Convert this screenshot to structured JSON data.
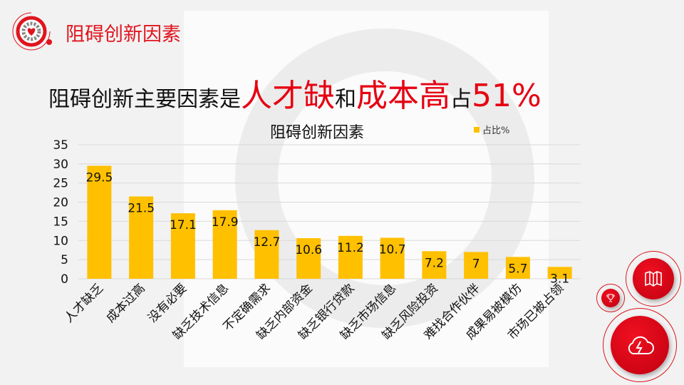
{
  "header": {
    "title": "阻碍创新因素"
  },
  "headline": {
    "part1": "阻碍创新主要因素是",
    "part2": "人才缺",
    "part3": "和",
    "part4": "成本高",
    "part5": "占",
    "part6": "51%"
  },
  "colors": {
    "accent": "#e60012",
    "bar": "#ffc000"
  },
  "chart_data": {
    "type": "bar",
    "title": "阻碍创新因素",
    "legend": [
      "占比%"
    ],
    "legend_position": "top-right",
    "categories": [
      "人才缺乏",
      "成本过高",
      "没有必要",
      "缺乏技术信息",
      "不定确需求",
      "缺乏内部资金",
      "缺乏银行贷款",
      "缺乏市场信息",
      "缺乏风险投资",
      "难找合作伙伴",
      "成果易被模仿",
      "市场已被占领"
    ],
    "series": [
      {
        "name": "占比%",
        "values": [
          29.5,
          21.5,
          17.1,
          17.9,
          12.7,
          10.6,
          11.2,
          10.7,
          7.2,
          7,
          5.7,
          3.1
        ]
      }
    ],
    "value_labels": [
      "29.5",
      "21.5",
      "17.1",
      "17.9",
      "12.7",
      "10.6",
      "11.2",
      "10.7",
      "7.2",
      "7",
      "5.7",
      "3.1"
    ],
    "ylim": [
      0,
      35
    ],
    "yticks": [
      "0",
      "5",
      "10",
      "15",
      "20",
      "25",
      "30",
      "35"
    ],
    "grid": true
  },
  "icons": [
    "map-icon",
    "trophy-icon",
    "cloud-lightning-icon"
  ]
}
